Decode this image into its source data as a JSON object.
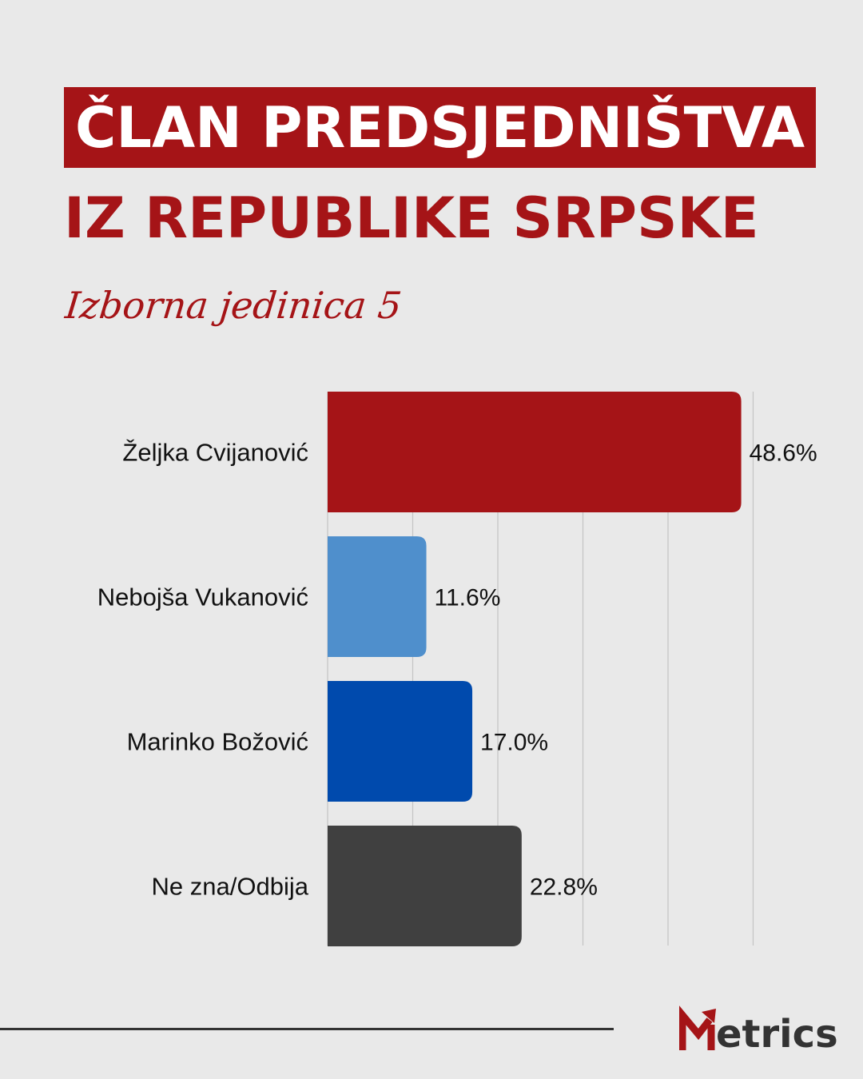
{
  "header": {
    "title": "ČLAN PREDSJEDNIŠTVA",
    "subtitle": "IZ REPUBLIKE SRPSKE",
    "script_subtitle": "Izborna jedinica 5"
  },
  "colors": {
    "brand_red": "#a51417",
    "background": "#e9e9e9"
  },
  "chart_data": {
    "type": "bar",
    "orientation": "horizontal",
    "categories": [
      "Željka Cvijanović",
      "Nebojša Vukanović",
      "Marinko Božović",
      "Ne zna/Odbija"
    ],
    "values": [
      48.6,
      11.6,
      17.0,
      22.8
    ],
    "value_labels": [
      "48.6%",
      "11.6%",
      "17.0%",
      "22.8%"
    ],
    "colors": [
      "#a51417",
      "#4f8fcc",
      "#004aad",
      "#404040"
    ],
    "xlim": [
      0,
      50
    ],
    "grid": true,
    "title": "",
    "xlabel": "",
    "ylabel": ""
  },
  "footer": {
    "logo_text": "etrics"
  }
}
